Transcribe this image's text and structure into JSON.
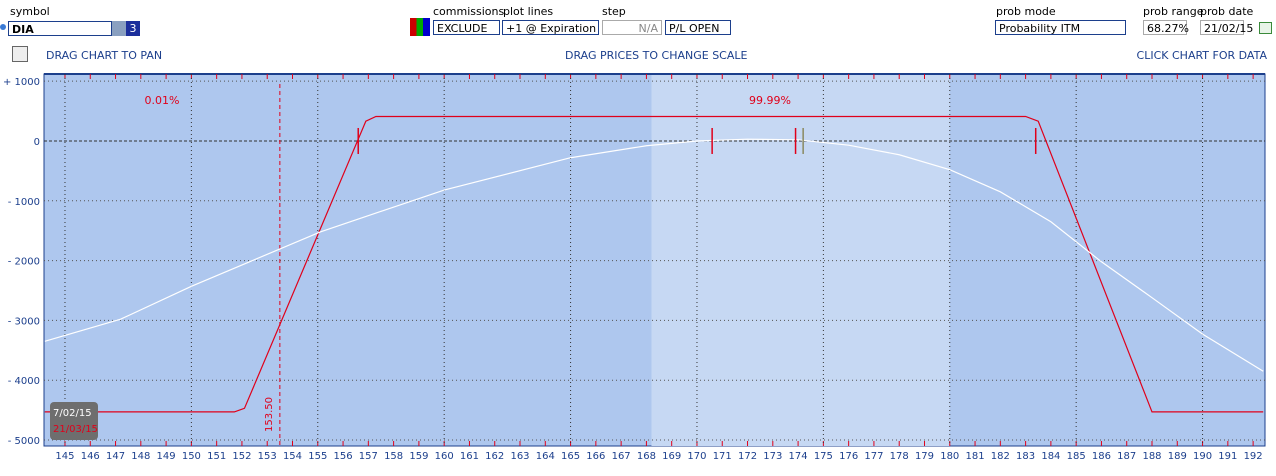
{
  "toolbar": {
    "symbol_label": "symbol",
    "symbol": "DIA",
    "count": 3,
    "commissions_label": "commissions",
    "commissions": "EXCLUDE",
    "plot_lines_label": "plot lines",
    "plot_lines": "+1 @ Expiration",
    "step_label": "step",
    "step": "N/A",
    "pl_mode": "P/L OPEN",
    "prob_mode_label": "prob mode",
    "prob_mode": "Probability ITM",
    "prob_range_label": "prob range",
    "prob_range": "68.27%",
    "prob_date_label": "prob date",
    "prob_date": "21/02/15"
  },
  "hints": {
    "pan": "DRAG CHART TO PAN",
    "scale": "DRAG PRICES TO CHANGE SCALE",
    "data": "CLICK CHART FOR DATA"
  },
  "chart_data": {
    "type": "line",
    "xlim": [
      144.17,
      192.47
    ],
    "ylim": [
      -5100,
      1120
    ],
    "xticks": [
      145,
      146,
      147,
      148,
      149,
      150,
      151,
      152,
      153,
      154,
      155,
      156,
      157,
      158,
      159,
      160,
      161,
      162,
      163,
      164,
      165,
      166,
      167,
      168,
      169,
      170,
      171,
      172,
      173,
      174,
      175,
      176,
      177,
      178,
      179,
      180,
      181,
      182,
      183,
      184,
      185,
      186,
      187,
      188,
      189,
      190,
      191,
      192
    ],
    "yticks": [
      {
        "value": 1000,
        "label": "+ 1000"
      },
      0,
      {
        "value": -1000,
        "label": "- 1000"
      },
      {
        "value": -2000,
        "label": "- 2000"
      },
      {
        "value": -3000,
        "label": "- 3000"
      },
      {
        "value": -4000,
        "label": "- 4000"
      },
      {
        "value": -5000,
        "label": "- 5000"
      }
    ],
    "grid": true,
    "shaded_x": [
      168.2,
      180.0
    ],
    "series": [
      {
        "color": "#e0001a",
        "x": [
          144.2,
          151.7,
          152.1,
          156.9,
          157.3,
          183.0,
          183.5,
          188.0,
          192.4
        ],
        "values": [
          -4530,
          -4530,
          -4470,
          330,
          410,
          410,
          330,
          -4530,
          -4530
        ]
      },
      {
        "color": "#ffffff",
        "x": [
          144.2,
          147.2,
          150,
          152.3,
          155.1,
          160,
          165,
          168,
          170,
          172,
          174,
          176,
          178,
          180,
          182,
          184,
          186,
          188,
          190,
          192.4
        ],
        "values": [
          -3350,
          -2980,
          -2430,
          -2020,
          -1520,
          -820,
          -280,
          -80,
          0,
          30,
          20,
          -70,
          -230,
          -480,
          -850,
          -1350,
          -2020,
          -2620,
          -3230,
          -3850
        ]
      }
    ],
    "annotations": [
      "0.01%",
      "99.99%"
    ],
    "vline": {
      "x": 153.5,
      "label": "153.50",
      "color": "#e0001a"
    },
    "markers": [
      {
        "x": 156.6,
        "color": "#e0001a"
      },
      {
        "x": 170.6,
        "color": "#e0001a"
      },
      {
        "x": 173.9,
        "color": "#e0001a"
      },
      {
        "x": 174.2,
        "color": "#8a8a60"
      },
      {
        "x": 183.4,
        "color": "#e0001a"
      }
    ],
    "date_labels": [
      "7/02/15",
      "21/03/15"
    ]
  }
}
